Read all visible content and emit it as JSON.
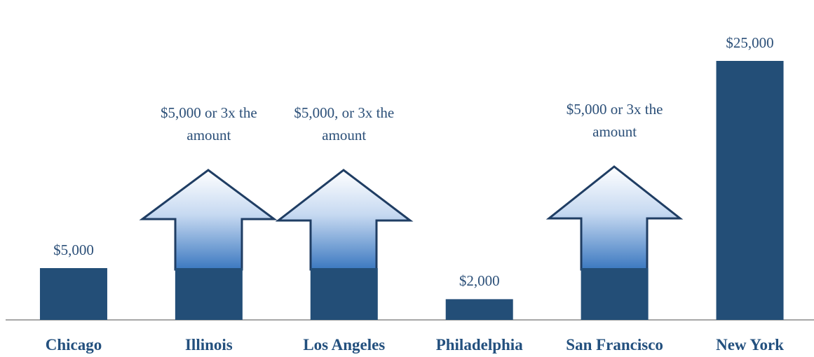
{
  "chart_data": {
    "type": "bar",
    "categories": [
      "Chicago",
      "Illinois",
      "Los Angeles",
      "Philadelphia",
      "San Francisco",
      "New York"
    ],
    "values": [
      5000,
      5000,
      5000,
      2000,
      5000,
      25000
    ],
    "value_labels": [
      "$5,000",
      "$5,000 or 3x the amount",
      "$5,000, or 3x the amount",
      "$2,000",
      "$5,000 or 3x the amount",
      "$25,000"
    ],
    "color": "#234e77",
    "ylim": [
      0,
      25000
    ]
  }
}
